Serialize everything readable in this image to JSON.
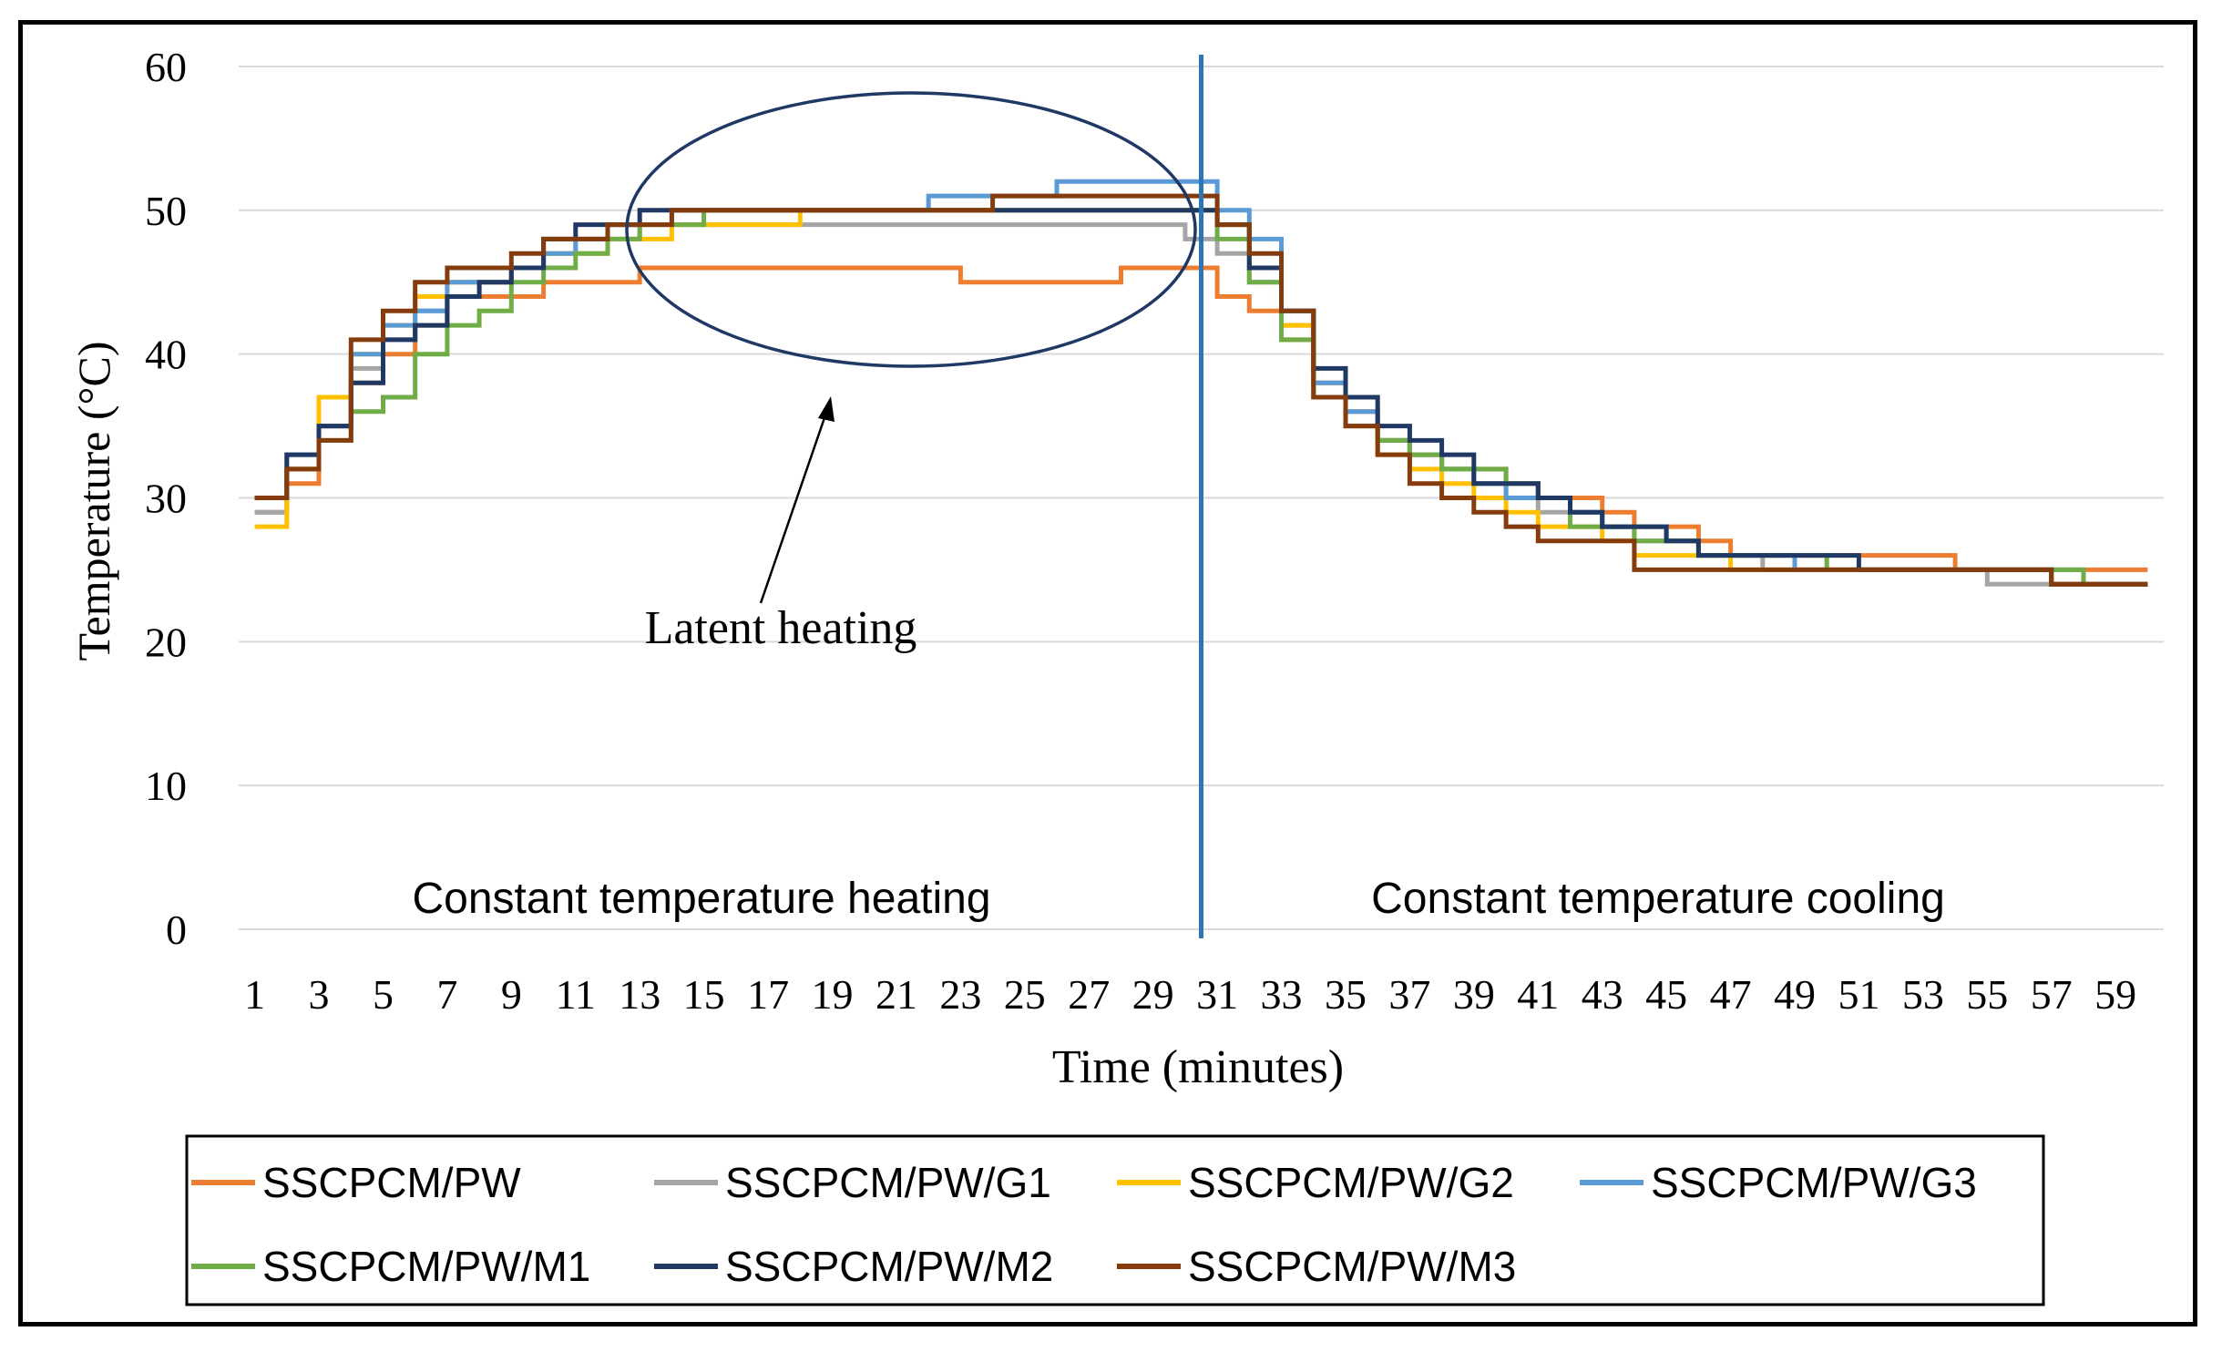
{
  "chart_data": {
    "type": "line",
    "title": "",
    "xlabel": "Time  (minutes)",
    "ylabel": "Temperature (°C)",
    "ylim": [
      0,
      60
    ],
    "yticks": [
      0,
      10,
      20,
      30,
      40,
      50,
      60
    ],
    "x": [
      1,
      2,
      3,
      4,
      5,
      6,
      7,
      8,
      9,
      10,
      11,
      12,
      13,
      14,
      15,
      16,
      17,
      18,
      19,
      20,
      21,
      22,
      23,
      24,
      25,
      26,
      27,
      28,
      29,
      30,
      31,
      32,
      33,
      34,
      35,
      36,
      37,
      38,
      39,
      40,
      41,
      42,
      43,
      44,
      45,
      46,
      47,
      48,
      49,
      50,
      51,
      52,
      53,
      54,
      55,
      56,
      57,
      58,
      59,
      60
    ],
    "xticks": [
      1,
      3,
      5,
      7,
      9,
      11,
      13,
      15,
      17,
      19,
      21,
      23,
      25,
      27,
      29,
      31,
      33,
      35,
      37,
      39,
      41,
      43,
      45,
      47,
      49,
      51,
      53,
      55,
      57,
      59
    ],
    "grid": true,
    "legend_position": "bottom",
    "series": [
      {
        "name": "SSCPCM/PW",
        "color": "#ED7D31",
        "values": [
          29,
          31,
          35,
          38,
          40,
          42,
          44,
          44,
          44,
          45,
          45,
          45,
          46,
          46,
          46,
          46,
          46,
          46,
          46,
          46,
          46,
          46,
          45,
          45,
          45,
          45,
          45,
          46,
          46,
          46,
          44,
          43,
          41,
          38,
          36,
          34,
          33,
          32,
          32,
          31,
          30,
          30,
          29,
          28,
          28,
          27,
          26,
          26,
          26,
          26,
          26,
          26,
          26,
          25,
          25,
          25,
          25,
          25,
          25,
          25
        ]
      },
      {
        "name": "SSCPCM/PW/G1",
        "color": "#A5A5A5",
        "values": [
          29,
          32,
          35,
          39,
          41,
          43,
          44,
          45,
          46,
          47,
          48,
          48,
          49,
          49,
          49,
          49,
          49,
          49,
          49,
          49,
          49,
          49,
          49,
          49,
          49,
          49,
          49,
          49,
          49,
          48,
          47,
          45,
          42,
          38,
          36,
          34,
          33,
          32,
          31,
          30,
          29,
          29,
          28,
          27,
          27,
          26,
          26,
          25,
          25,
          25,
          25,
          25,
          25,
          25,
          24,
          24,
          24,
          24,
          24,
          24
        ]
      },
      {
        "name": "SSCPCM/PW/G2",
        "color": "#FFC000",
        "values": [
          28,
          32,
          37,
          40,
          42,
          44,
          45,
          45,
          46,
          47,
          47,
          48,
          48,
          49,
          49,
          49,
          49,
          50,
          50,
          50,
          50,
          50,
          50,
          50,
          50,
          50,
          50,
          50,
          50,
          50,
          49,
          46,
          42,
          37,
          35,
          33,
          32,
          31,
          30,
          29,
          28,
          28,
          27,
          26,
          26,
          26,
          25,
          25,
          25,
          25,
          25,
          25,
          25,
          25,
          25,
          25,
          24,
          24,
          24,
          24
        ]
      },
      {
        "name": "SSCPCM/PW/G3",
        "color": "#5B9BD5",
        "values": [
          30,
          33,
          35,
          40,
          42,
          43,
          45,
          45,
          46,
          47,
          48,
          49,
          49,
          50,
          50,
          50,
          50,
          50,
          50,
          50,
          50,
          51,
          51,
          51,
          51,
          52,
          52,
          52,
          52,
          52,
          50,
          48,
          43,
          38,
          36,
          34,
          33,
          32,
          31,
          30,
          30,
          29,
          28,
          28,
          27,
          26,
          26,
          26,
          25,
          25,
          25,
          25,
          25,
          25,
          25,
          25,
          25,
          24,
          24,
          24
        ]
      },
      {
        "name": "SSCPCM/PW/M1",
        "color": "#70AD47",
        "values": [
          30,
          32,
          34,
          36,
          37,
          40,
          42,
          43,
          45,
          46,
          47,
          48,
          49,
          49,
          50,
          50,
          50,
          50,
          50,
          50,
          50,
          50,
          50,
          50,
          50,
          50,
          50,
          50,
          50,
          50,
          48,
          45,
          41,
          37,
          35,
          34,
          33,
          32,
          32,
          31,
          30,
          28,
          28,
          27,
          27,
          26,
          26,
          26,
          26,
          25,
          25,
          25,
          25,
          25,
          25,
          25,
          25,
          24,
          24,
          24
        ]
      },
      {
        "name": "SSCPCM/PW/M2",
        "color": "#1F3864",
        "values": [
          30,
          33,
          35,
          38,
          41,
          42,
          44,
          45,
          46,
          48,
          49,
          49,
          50,
          50,
          50,
          50,
          50,
          50,
          50,
          50,
          50,
          50,
          50,
          50,
          50,
          50,
          50,
          50,
          50,
          50,
          49,
          46,
          43,
          39,
          37,
          35,
          34,
          33,
          31,
          31,
          30,
          29,
          28,
          28,
          27,
          26,
          26,
          26,
          26,
          26,
          25,
          25,
          25,
          25,
          25,
          25,
          24,
          24,
          24,
          24
        ]
      },
      {
        "name": "SSCPCM/PW/M3",
        "color": "#843C0C",
        "values": [
          30,
          32,
          34,
          41,
          43,
          45,
          46,
          46,
          47,
          48,
          48,
          49,
          49,
          50,
          50,
          50,
          50,
          50,
          50,
          50,
          50,
          50,
          50,
          51,
          51,
          51,
          51,
          51,
          51,
          51,
          49,
          47,
          43,
          37,
          35,
          33,
          31,
          30,
          29,
          28,
          27,
          27,
          27,
          25,
          25,
          25,
          25,
          25,
          25,
          25,
          25,
          25,
          25,
          25,
          25,
          25,
          24,
          24,
          24,
          24
        ]
      }
    ],
    "divider_x": 30.5,
    "divider_color": "#2E75B6",
    "annotations": {
      "latent": "Latent heating",
      "heating": "Constant temperature heating",
      "cooling": "Constant temperature cooling"
    },
    "ellipse_color": "#1F3864"
  }
}
